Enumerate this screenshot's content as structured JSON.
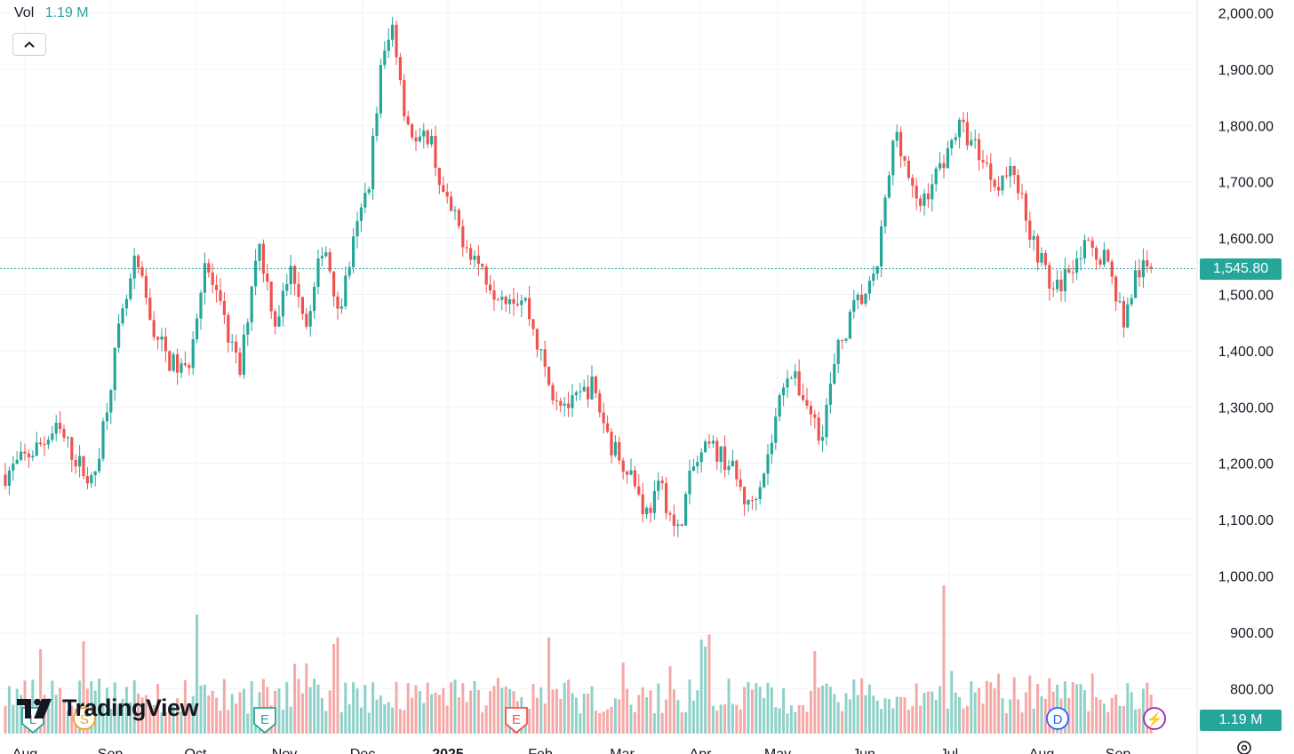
{
  "volume_header": {
    "label": "Vol",
    "value": "1.19 M"
  },
  "brand": {
    "name": "TradingView"
  },
  "last_price_label": "1,545.80",
  "volume_label": "1.19 M",
  "colors": {
    "up": "#26a69a",
    "down": "#ef5350",
    "up_vol": "#8fd1c8",
    "down_vol": "#f4a9a7",
    "grid": "#f0f3fa"
  },
  "events": [
    {
      "letter": "L",
      "type": "earnings-left",
      "color": "#26a69a"
    },
    {
      "letter": "S",
      "type": "split",
      "color": "#f0a020"
    },
    {
      "letter": "E",
      "type": "earnings",
      "color": "#26a69a"
    },
    {
      "letter": "E",
      "type": "earnings",
      "color": "#ef5350"
    },
    {
      "letter": "D",
      "type": "dividend",
      "color": "#2962ff"
    },
    {
      "letter": "⚡",
      "type": "flash",
      "color": "#9c27b0"
    }
  ],
  "chart_data": {
    "type": "candlestick",
    "y_axis_labels": [
      "2,000.00",
      "1,900.00",
      "1,800.00",
      "1,700.00",
      "1,600.00",
      "1,500.00",
      "1,400.00",
      "1,300.00",
      "1,200.00",
      "1,100.00",
      "1,000.00",
      "900.00",
      "800.00"
    ],
    "ylim": [
      800,
      2000
    ],
    "x_axis_labels": [
      "Aug",
      "Sep",
      "Oct",
      "Nov",
      "Dec",
      "2025",
      "Feb",
      "Mar",
      "Apr",
      "May",
      "Jun",
      "Jul",
      "Aug",
      "Sep"
    ],
    "last_price": 1545.8,
    "anchors": [
      [
        "Aug",
        1180
      ],
      [
        "Aug",
        1260
      ],
      [
        "Aug",
        1160
      ],
      [
        "Sep",
        1430
      ],
      [
        "Sep",
        1560
      ],
      [
        "Sep",
        1440
      ],
      [
        "Sep",
        1380
      ],
      [
        "Sep",
        1360
      ],
      [
        "Oct",
        1560
      ],
      [
        "Oct",
        1460
      ],
      [
        "Oct",
        1360
      ],
      [
        "Oct",
        1600
      ],
      [
        "Oct",
        1450
      ],
      [
        "Nov",
        1550
      ],
      [
        "Nov",
        1440
      ],
      [
        "Nov",
        1600
      ],
      [
        "Nov",
        1470
      ],
      [
        "Nov",
        1600
      ],
      [
        "Dec",
        1700
      ],
      [
        "Dec",
        1900
      ],
      [
        "Dec",
        1980
      ],
      [
        "Dec",
        1820
      ],
      [
        "Dec",
        1760
      ],
      [
        "Dec",
        1790
      ],
      [
        "Dec",
        1680
      ],
      [
        "2025",
        1600
      ],
      [
        "2025",
        1510
      ],
      [
        "2025",
        1490
      ],
      [
        "Feb",
        1330
      ],
      [
        "Feb",
        1300
      ],
      [
        "Feb",
        1340
      ],
      [
        "Feb",
        1230
      ],
      [
        "Mar",
        1190
      ],
      [
        "Mar",
        1110
      ],
      [
        "Mar",
        1160
      ],
      [
        "Mar",
        1070
      ],
      [
        "Mar",
        1190
      ],
      [
        "Apr",
        1230
      ],
      [
        "Apr",
        1200
      ],
      [
        "Apr",
        1120
      ],
      [
        "Apr",
        1210
      ],
      [
        "May",
        1370
      ],
      [
        "May",
        1320
      ],
      [
        "May",
        1250
      ],
      [
        "May",
        1400
      ],
      [
        "May",
        1480
      ],
      [
        "Jun",
        1520
      ],
      [
        "Jun",
        1800
      ],
      [
        "Jun",
        1650
      ],
      [
        "Jun",
        1720
      ],
      [
        "Jul",
        1800
      ],
      [
        "Jul",
        1760
      ],
      [
        "Jul",
        1700
      ],
      [
        "Jul",
        1720
      ],
      [
        "Jul",
        1600
      ],
      [
        "Aug",
        1500
      ],
      [
        "Aug",
        1580
      ],
      [
        "Aug",
        1570
      ],
      [
        "Sep",
        1450
      ],
      [
        "Sep",
        1540
      ],
      [
        "Sep",
        1545.8
      ]
    ],
    "volume_peaks": [
      [
        "Aug",
        1.3
      ],
      [
        "Sep",
        2.3
      ],
      [
        "Oct",
        1.8
      ],
      [
        "Nov",
        1.2
      ],
      [
        "Dec",
        2.1
      ],
      [
        "2025",
        0.5
      ],
      [
        "Feb",
        1.4
      ],
      [
        "Mar",
        0.9
      ],
      [
        "Apr",
        1.3
      ],
      [
        "May",
        1.2
      ],
      [
        "Jun",
        2.5
      ],
      [
        "Jul",
        0.9
      ],
      [
        "Aug",
        0.8
      ],
      [
        "Sep",
        0.5
      ]
    ],
    "volume_range_millions": [
      0,
      2.6
    ],
    "grid": true
  }
}
